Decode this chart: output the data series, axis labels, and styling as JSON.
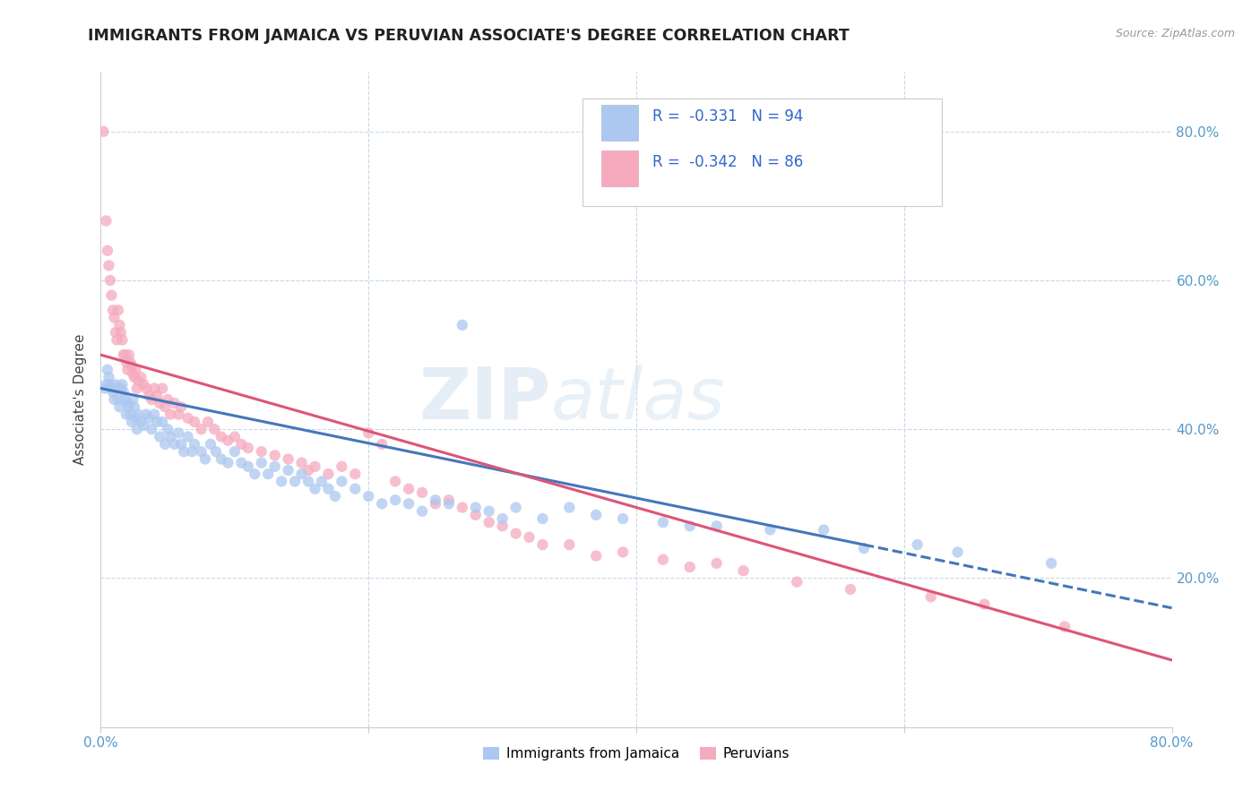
{
  "title": "IMMIGRANTS FROM JAMAICA VS PERUVIAN ASSOCIATE'S DEGREE CORRELATION CHART",
  "source": "Source: ZipAtlas.com",
  "ylabel": "Associate's Degree",
  "xlim": [
    0.0,
    0.8
  ],
  "ylim": [
    0.0,
    0.88
  ],
  "xtick_vals": [
    0.0,
    0.2,
    0.4,
    0.6,
    0.8
  ],
  "xtick_labels": [
    "0.0%",
    "",
    "",
    "",
    "80.0%"
  ],
  "ytick_vals": [
    0.2,
    0.4,
    0.6,
    0.8
  ],
  "ytick_labels_right": [
    "20.0%",
    "40.0%",
    "60.0%",
    "80.0%"
  ],
  "color_jamaica": "#adc8f0",
  "color_peru": "#f5aabe",
  "line_jamaica": "#4477bb",
  "line_peru": "#dd5577",
  "background_color": "#ffffff",
  "grid_color": "#c8d8e8",
  "title_color": "#222222",
  "tick_color": "#5599cc",
  "jamaica_scatter": [
    [
      0.003,
      0.455
    ],
    [
      0.004,
      0.46
    ],
    [
      0.005,
      0.48
    ],
    [
      0.006,
      0.47
    ],
    [
      0.007,
      0.46
    ],
    [
      0.008,
      0.455
    ],
    [
      0.009,
      0.45
    ],
    [
      0.01,
      0.44
    ],
    [
      0.011,
      0.46
    ],
    [
      0.012,
      0.455
    ],
    [
      0.013,
      0.44
    ],
    [
      0.014,
      0.43
    ],
    [
      0.015,
      0.455
    ],
    [
      0.016,
      0.46
    ],
    [
      0.017,
      0.45
    ],
    [
      0.018,
      0.44
    ],
    [
      0.019,
      0.42
    ],
    [
      0.02,
      0.435
    ],
    [
      0.021,
      0.43
    ],
    [
      0.022,
      0.42
    ],
    [
      0.023,
      0.41
    ],
    [
      0.024,
      0.44
    ],
    [
      0.025,
      0.43
    ],
    [
      0.026,
      0.415
    ],
    [
      0.027,
      0.4
    ],
    [
      0.028,
      0.42
    ],
    [
      0.03,
      0.41
    ],
    [
      0.032,
      0.405
    ],
    [
      0.034,
      0.42
    ],
    [
      0.036,
      0.415
    ],
    [
      0.038,
      0.4
    ],
    [
      0.04,
      0.42
    ],
    [
      0.042,
      0.41
    ],
    [
      0.044,
      0.39
    ],
    [
      0.046,
      0.41
    ],
    [
      0.048,
      0.38
    ],
    [
      0.05,
      0.4
    ],
    [
      0.052,
      0.39
    ],
    [
      0.055,
      0.38
    ],
    [
      0.058,
      0.395
    ],
    [
      0.06,
      0.38
    ],
    [
      0.062,
      0.37
    ],
    [
      0.065,
      0.39
    ],
    [
      0.068,
      0.37
    ],
    [
      0.07,
      0.38
    ],
    [
      0.075,
      0.37
    ],
    [
      0.078,
      0.36
    ],
    [
      0.082,
      0.38
    ],
    [
      0.086,
      0.37
    ],
    [
      0.09,
      0.36
    ],
    [
      0.095,
      0.355
    ],
    [
      0.1,
      0.37
    ],
    [
      0.105,
      0.355
    ],
    [
      0.11,
      0.35
    ],
    [
      0.115,
      0.34
    ],
    [
      0.12,
      0.355
    ],
    [
      0.125,
      0.34
    ],
    [
      0.13,
      0.35
    ],
    [
      0.135,
      0.33
    ],
    [
      0.14,
      0.345
    ],
    [
      0.145,
      0.33
    ],
    [
      0.15,
      0.34
    ],
    [
      0.155,
      0.33
    ],
    [
      0.16,
      0.32
    ],
    [
      0.165,
      0.33
    ],
    [
      0.17,
      0.32
    ],
    [
      0.175,
      0.31
    ],
    [
      0.18,
      0.33
    ],
    [
      0.19,
      0.32
    ],
    [
      0.2,
      0.31
    ],
    [
      0.21,
      0.3
    ],
    [
      0.22,
      0.305
    ],
    [
      0.23,
      0.3
    ],
    [
      0.24,
      0.29
    ],
    [
      0.25,
      0.305
    ],
    [
      0.26,
      0.3
    ],
    [
      0.27,
      0.54
    ],
    [
      0.28,
      0.295
    ],
    [
      0.29,
      0.29
    ],
    [
      0.3,
      0.28
    ],
    [
      0.31,
      0.295
    ],
    [
      0.33,
      0.28
    ],
    [
      0.35,
      0.295
    ],
    [
      0.37,
      0.285
    ],
    [
      0.39,
      0.28
    ],
    [
      0.42,
      0.275
    ],
    [
      0.44,
      0.27
    ],
    [
      0.46,
      0.27
    ],
    [
      0.5,
      0.265
    ],
    [
      0.54,
      0.265
    ],
    [
      0.57,
      0.24
    ],
    [
      0.61,
      0.245
    ],
    [
      0.64,
      0.235
    ],
    [
      0.71,
      0.22
    ]
  ],
  "peru_scatter": [
    [
      0.002,
      0.8
    ],
    [
      0.004,
      0.68
    ],
    [
      0.005,
      0.64
    ],
    [
      0.006,
      0.62
    ],
    [
      0.007,
      0.6
    ],
    [
      0.008,
      0.58
    ],
    [
      0.009,
      0.56
    ],
    [
      0.01,
      0.55
    ],
    [
      0.011,
      0.53
    ],
    [
      0.012,
      0.52
    ],
    [
      0.013,
      0.56
    ],
    [
      0.014,
      0.54
    ],
    [
      0.015,
      0.53
    ],
    [
      0.016,
      0.52
    ],
    [
      0.017,
      0.5
    ],
    [
      0.018,
      0.5
    ],
    [
      0.019,
      0.49
    ],
    [
      0.02,
      0.48
    ],
    [
      0.021,
      0.5
    ],
    [
      0.022,
      0.49
    ],
    [
      0.023,
      0.485
    ],
    [
      0.024,
      0.475
    ],
    [
      0.025,
      0.47
    ],
    [
      0.026,
      0.48
    ],
    [
      0.027,
      0.455
    ],
    [
      0.028,
      0.465
    ],
    [
      0.03,
      0.47
    ],
    [
      0.032,
      0.46
    ],
    [
      0.034,
      0.455
    ],
    [
      0.036,
      0.445
    ],
    [
      0.038,
      0.44
    ],
    [
      0.04,
      0.455
    ],
    [
      0.042,
      0.445
    ],
    [
      0.044,
      0.435
    ],
    [
      0.046,
      0.455
    ],
    [
      0.048,
      0.43
    ],
    [
      0.05,
      0.44
    ],
    [
      0.052,
      0.42
    ],
    [
      0.055,
      0.435
    ],
    [
      0.058,
      0.42
    ],
    [
      0.06,
      0.43
    ],
    [
      0.065,
      0.415
    ],
    [
      0.07,
      0.41
    ],
    [
      0.075,
      0.4
    ],
    [
      0.08,
      0.41
    ],
    [
      0.085,
      0.4
    ],
    [
      0.09,
      0.39
    ],
    [
      0.095,
      0.385
    ],
    [
      0.1,
      0.39
    ],
    [
      0.105,
      0.38
    ],
    [
      0.11,
      0.375
    ],
    [
      0.12,
      0.37
    ],
    [
      0.13,
      0.365
    ],
    [
      0.14,
      0.36
    ],
    [
      0.15,
      0.355
    ],
    [
      0.155,
      0.345
    ],
    [
      0.16,
      0.35
    ],
    [
      0.17,
      0.34
    ],
    [
      0.18,
      0.35
    ],
    [
      0.19,
      0.34
    ],
    [
      0.2,
      0.395
    ],
    [
      0.21,
      0.38
    ],
    [
      0.22,
      0.33
    ],
    [
      0.23,
      0.32
    ],
    [
      0.24,
      0.315
    ],
    [
      0.25,
      0.3
    ],
    [
      0.26,
      0.305
    ],
    [
      0.27,
      0.295
    ],
    [
      0.28,
      0.285
    ],
    [
      0.29,
      0.275
    ],
    [
      0.3,
      0.27
    ],
    [
      0.31,
      0.26
    ],
    [
      0.32,
      0.255
    ],
    [
      0.33,
      0.245
    ],
    [
      0.35,
      0.245
    ],
    [
      0.37,
      0.23
    ],
    [
      0.39,
      0.235
    ],
    [
      0.42,
      0.225
    ],
    [
      0.44,
      0.215
    ],
    [
      0.46,
      0.22
    ],
    [
      0.48,
      0.21
    ],
    [
      0.52,
      0.195
    ],
    [
      0.56,
      0.185
    ],
    [
      0.62,
      0.175
    ],
    [
      0.66,
      0.165
    ],
    [
      0.72,
      0.135
    ]
  ],
  "jamaica_line_solid": [
    [
      0.0,
      0.455
    ],
    [
      0.57,
      0.245
    ]
  ],
  "jamaica_line_dashed": [
    [
      0.57,
      0.245
    ],
    [
      0.8,
      0.16
    ]
  ],
  "peru_line_solid": [
    [
      0.0,
      0.5
    ],
    [
      0.8,
      0.09
    ]
  ]
}
